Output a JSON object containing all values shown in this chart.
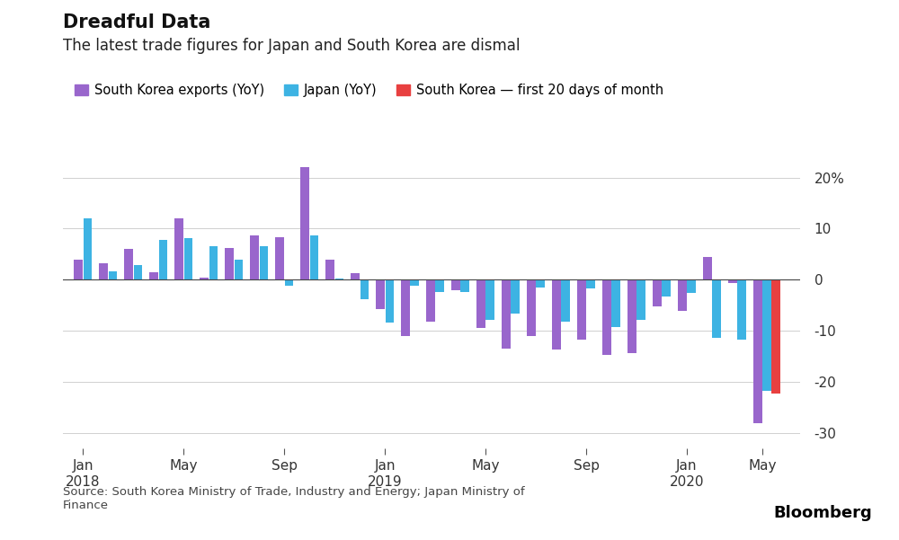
{
  "title_bold": "Dreadful Data",
  "title_sub": "The latest trade figures for Japan and South Korea are dismal",
  "legend_labels": [
    "South Korea exports (YoY)",
    "Japan (YoY)",
    "South Korea — first 20 days of month"
  ],
  "legend_colors": [
    "#9966cc",
    "#3db3e3",
    "#e84040"
  ],
  "source": "Source: South Korea Ministry of Trade, Industry and Energy; Japan Ministry of\nFinance",
  "bloomberg": "Bloomberg",
  "ylim": [
    -33,
    22
  ],
  "yticks": [
    -30,
    -20,
    -10,
    0,
    10,
    20
  ],
  "ytick_labels": [
    "-30",
    "-20",
    "-10",
    "0",
    "10",
    "20%"
  ],
  "background": "#ffffff",
  "sk_exports": [
    3.9,
    3.2,
    6.1,
    1.5,
    12.0,
    0.4,
    6.2,
    8.7,
    8.3,
    22.4,
    4.0,
    1.3,
    -5.8,
    -11.1,
    -8.2,
    -2.0,
    -9.4,
    -13.5,
    -11.0,
    -13.6,
    -11.7,
    -14.7,
    -14.3,
    -5.3,
    -6.1,
    4.5,
    -0.7,
    -28.1
  ],
  "japan_exports": [
    12.0,
    1.6,
    2.9,
    7.8,
    8.1,
    6.5,
    3.9,
    6.6,
    -1.2,
    8.7,
    0.2,
    -3.8,
    -8.4,
    -1.2,
    -2.4,
    -2.4,
    -7.8,
    -6.7,
    -1.6,
    -8.2,
    -1.7,
    -9.2,
    -7.9,
    -3.2,
    -2.6,
    -11.3,
    -11.7,
    -21.8
  ],
  "sk_20days_val": -22.3,
  "sk_color": "#9966cc",
  "japan_color": "#3db3e3",
  "sk20_color": "#e84040",
  "bar_width": 0.35,
  "grid_color": "#d0d0d0",
  "xtick_positions": [
    0,
    4,
    8,
    12,
    16,
    20,
    24,
    27
  ],
  "xtick_labels": [
    "Jan\n2018",
    "May",
    "Sep",
    "Jan\n2019",
    "May",
    "Sep",
    "Jan\n2020",
    "May"
  ]
}
